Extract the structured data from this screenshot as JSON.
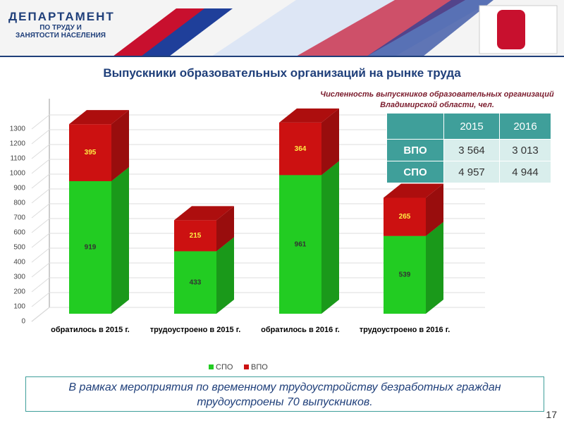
{
  "header": {
    "logo": [
      "ДЕПАРТАМЕНТ",
      "ПО ТРУДУ И",
      "ЗАНЯТОСТИ НАСЕЛЕНИЯ"
    ],
    "title": "Выпускники образовательных организаций на рынке труда"
  },
  "chart_data": {
    "type": "bar",
    "stacked": true,
    "categories": [
      "обратилось в 2015 г.",
      "трудоустроено в 2015 г.",
      "обратилось в 2016 г.",
      "трудоустроено в 2016 г."
    ],
    "series": [
      {
        "name": "СПО",
        "color": "#22cc22",
        "values": [
          919,
          433,
          961,
          539
        ]
      },
      {
        "name": "ВПО",
        "color": "#cc1111",
        "values": [
          395,
          215,
          364,
          265
        ]
      }
    ],
    "ylim": [
      0,
      1300
    ],
    "yticks": [
      0,
      100,
      200,
      300,
      400,
      500,
      600,
      700,
      800,
      900,
      1000,
      1100,
      1200,
      1300
    ],
    "grid": true,
    "legend": "bottom"
  },
  "table": {
    "caption": "Численность выпускников образовательных организаций Владимирской области, чел.",
    "header": [
      "2015",
      "2016"
    ],
    "rows": [
      [
        "ВПО",
        "3 564",
        "3 013"
      ],
      [
        "СПО",
        "4 957",
        "4 944"
      ]
    ]
  },
  "note": "В рамках мероприятия по временному трудоустройству безработных граждан трудоустроены 70 выпускников.",
  "page": "17"
}
